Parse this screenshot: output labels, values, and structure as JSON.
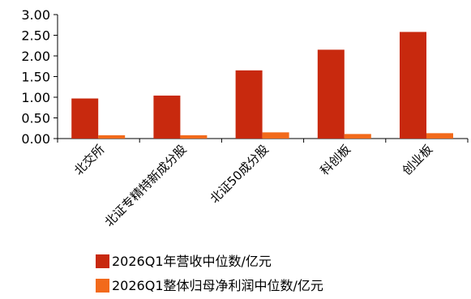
{
  "chart_data": {
    "type": "bar",
    "categories": [
      "北交所",
      "北证专精特新成分股",
      "北证50成分股",
      "科创板",
      "创业板"
    ],
    "series": [
      {
        "name": "2026Q1年营收中位数/亿元",
        "color": "#c8290e",
        "values": [
          0.97,
          1.04,
          1.65,
          2.15,
          2.58
        ]
      },
      {
        "name": "2026Q1整体归母净利润中位数/亿元",
        "color": "#f26a1b",
        "values": [
          0.08,
          0.08,
          0.15,
          0.11,
          0.13
        ]
      }
    ],
    "y_ticks": [
      "0.00",
      "0.50",
      "1.00",
      "1.50",
      "2.00",
      "2.50",
      "3.00"
    ],
    "ylim": [
      0,
      3
    ],
    "grid": false,
    "legend_position": "bottom-left"
  }
}
